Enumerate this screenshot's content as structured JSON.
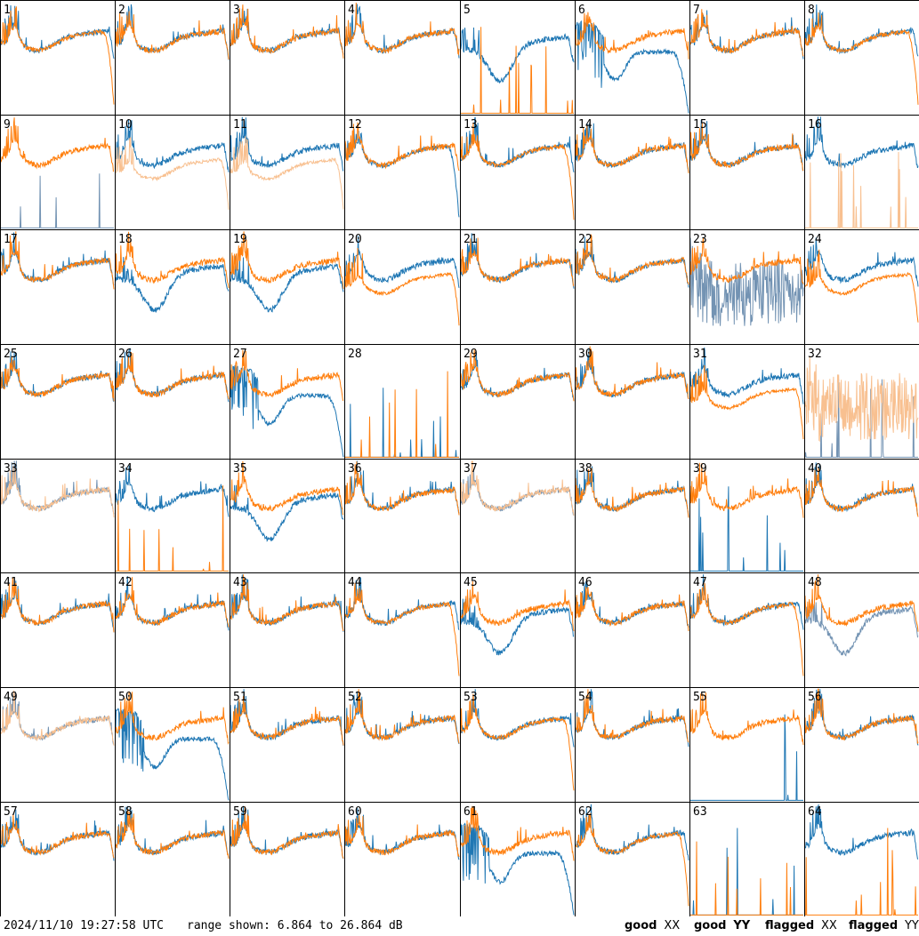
{
  "footer": {
    "timestamp": "2024/11/10 19:27:58 UTC",
    "range_text": "range shown: 6.864 to 26.864 dB"
  },
  "legend": [
    {
      "key": "good_xx",
      "label_prefix": "good",
      "label_pol": "XX",
      "color": "#1f77b4"
    },
    {
      "key": "good_yy",
      "label_prefix": "good",
      "label_pol": "YY",
      "color": "#ff7f0e"
    },
    {
      "key": "flagged_xx",
      "label_prefix": "flagged",
      "label_pol": "XX",
      "color": "#7393b3"
    },
    {
      "key": "flagged_yy",
      "label_prefix": "flagged",
      "label_pol": "YY",
      "color": "#f8c090"
    }
  ],
  "chart_data": {
    "type": "line",
    "layout": "8x8 small multiples",
    "ylim_db": [
      6.864,
      26.864
    ],
    "x_axis": "channel (unlabeled)",
    "series_colors": {
      "good_xx": "#1f77b4",
      "good_yy": "#ff7f0e",
      "flagged_xx": "#7393b3",
      "flagged_yy": "#f8c090"
    },
    "panel_labels": [
      "1",
      "2",
      "3",
      "4",
      "5",
      "6",
      "7",
      "8",
      "9",
      "10",
      "11",
      "12",
      "13",
      "14",
      "15",
      "16",
      "17",
      "18",
      "19",
      "20",
      "21",
      "22",
      "23",
      "24",
      "25",
      "26",
      "27",
      "28",
      "29",
      "30",
      "31",
      "32",
      "33",
      "34",
      "35",
      "36",
      "37",
      "38",
      "39",
      "40",
      "41",
      "42",
      "43",
      "44",
      "45",
      "46",
      "47",
      "48",
      "49",
      "50",
      "51",
      "52",
      "53",
      "54",
      "55",
      "56",
      "57",
      "58",
      "59",
      "60",
      "61",
      "62",
      "63",
      "64"
    ],
    "panels": [
      {
        "n": 1,
        "xx": {
          "s": "A",
          "f": 0
        },
        "yy": {
          "s": "R",
          "f": 0
        }
      },
      {
        "n": 2,
        "xx": {
          "s": "A",
          "f": 0
        },
        "yy": {
          "s": "A",
          "f": 0
        }
      },
      {
        "n": 3,
        "xx": {
          "s": "A",
          "f": 0
        },
        "yy": {
          "s": "A",
          "f": 0
        }
      },
      {
        "n": 4,
        "xx": {
          "s": "A",
          "f": 0
        },
        "yy": {
          "s": "A",
          "f": 0
        }
      },
      {
        "n": 5,
        "xx": {
          "s": "D",
          "f": 0
        },
        "yy": {
          "s": "F",
          "f": 0
        }
      },
      {
        "n": 6,
        "xx": {
          "s": "E",
          "f": 0
        },
        "yy": {
          "s": "A",
          "f": 0
        }
      },
      {
        "n": 7,
        "xx": {
          "s": "A",
          "f": 0
        },
        "yy": {
          "s": "A",
          "f": 0
        }
      },
      {
        "n": 8,
        "xx": {
          "s": "A",
          "f": 0
        },
        "yy": {
          "s": "R",
          "f": 0
        }
      },
      {
        "n": 9,
        "xx": {
          "s": "S",
          "f": 1
        },
        "yy": {
          "s": "A",
          "f": 0
        }
      },
      {
        "n": 10,
        "xx": {
          "s": "A",
          "f": 0
        },
        "yy": {
          "s": "L",
          "f": 1
        }
      },
      {
        "n": 11,
        "xx": {
          "s": "A",
          "f": 0
        },
        "yy": {
          "s": "L",
          "f": 1
        }
      },
      {
        "n": 12,
        "xx": {
          "s": "R",
          "f": 0
        },
        "yy": {
          "s": "A",
          "f": 0
        }
      },
      {
        "n": 13,
        "xx": {
          "s": "A",
          "f": 0
        },
        "yy": {
          "s": "R",
          "f": 0
        }
      },
      {
        "n": 14,
        "xx": {
          "s": "A",
          "f": 0
        },
        "yy": {
          "s": "A",
          "f": 0
        }
      },
      {
        "n": 15,
        "xx": {
          "s": "A",
          "f": 0
        },
        "yy": {
          "s": "A",
          "f": 0
        }
      },
      {
        "n": 16,
        "xx": {
          "s": "A",
          "f": 0
        },
        "yy": {
          "s": "F",
          "f": 1
        }
      },
      {
        "n": 17,
        "xx": {
          "s": "A",
          "f": 0
        },
        "yy": {
          "s": "A",
          "f": 0
        }
      },
      {
        "n": 18,
        "xx": {
          "s": "D",
          "f": 0
        },
        "yy": {
          "s": "A",
          "f": 0
        }
      },
      {
        "n": 19,
        "xx": {
          "s": "D",
          "f": 0
        },
        "yy": {
          "s": "A",
          "f": 0
        }
      },
      {
        "n": 20,
        "xx": {
          "s": "A",
          "f": 0
        },
        "yy": {
          "s": "L",
          "f": 0
        }
      },
      {
        "n": 21,
        "xx": {
          "s": "A",
          "f": 0
        },
        "yy": {
          "s": "A",
          "f": 0
        }
      },
      {
        "n": 22,
        "xx": {
          "s": "A",
          "f": 0
        },
        "yy": {
          "s": "A",
          "f": 0
        }
      },
      {
        "n": 23,
        "xx": {
          "s": "N",
          "f": 1
        },
        "yy": {
          "s": "A",
          "f": 0
        }
      },
      {
        "n": 24,
        "xx": {
          "s": "A",
          "f": 0
        },
        "yy": {
          "s": "L",
          "f": 0
        }
      },
      {
        "n": 25,
        "xx": {
          "s": "A",
          "f": 0
        },
        "yy": {
          "s": "A",
          "f": 0
        }
      },
      {
        "n": 26,
        "xx": {
          "s": "A",
          "f": 0
        },
        "yy": {
          "s": "A",
          "f": 0
        }
      },
      {
        "n": 27,
        "xx": {
          "s": "E",
          "f": 0
        },
        "yy": {
          "s": "A",
          "f": 0
        }
      },
      {
        "n": 28,
        "xx": {
          "s": "F",
          "f": 0
        },
        "yy": {
          "s": "F",
          "f": 0
        }
      },
      {
        "n": 29,
        "xx": {
          "s": "A",
          "f": 0
        },
        "yy": {
          "s": "A",
          "f": 0
        }
      },
      {
        "n": 30,
        "xx": {
          "s": "A",
          "f": 0
        },
        "yy": {
          "s": "A",
          "f": 0
        }
      },
      {
        "n": 31,
        "xx": {
          "s": "A",
          "f": 0
        },
        "yy": {
          "s": "L",
          "f": 0
        }
      },
      {
        "n": 32,
        "xx": {
          "s": "F",
          "f": 1
        },
        "yy": {
          "s": "N",
          "f": 1
        }
      },
      {
        "n": 33,
        "xx": {
          "s": "A",
          "f": 1
        },
        "yy": {
          "s": "A",
          "f": 1
        }
      },
      {
        "n": 34,
        "xx": {
          "s": "A",
          "f": 0
        },
        "yy": {
          "s": "F",
          "f": 0
        }
      },
      {
        "n": 35,
        "xx": {
          "s": "D",
          "f": 0
        },
        "yy": {
          "s": "A",
          "f": 0
        }
      },
      {
        "n": 36,
        "xx": {
          "s": "A",
          "f": 0
        },
        "yy": {
          "s": "A",
          "f": 0
        }
      },
      {
        "n": 37,
        "xx": {
          "s": "A",
          "f": 1
        },
        "yy": {
          "s": "A",
          "f": 1
        }
      },
      {
        "n": 38,
        "xx": {
          "s": "A",
          "f": 0
        },
        "yy": {
          "s": "A",
          "f": 0
        }
      },
      {
        "n": 39,
        "xx": {
          "s": "F",
          "f": 0
        },
        "yy": {
          "s": "A",
          "f": 0
        }
      },
      {
        "n": 40,
        "xx": {
          "s": "A",
          "f": 0
        },
        "yy": {
          "s": "A",
          "f": 0
        }
      },
      {
        "n": 41,
        "xx": {
          "s": "A",
          "f": 0
        },
        "yy": {
          "s": "A",
          "f": 0
        }
      },
      {
        "n": 42,
        "xx": {
          "s": "A",
          "f": 0
        },
        "yy": {
          "s": "A",
          "f": 0
        }
      },
      {
        "n": 43,
        "xx": {
          "s": "A",
          "f": 0
        },
        "yy": {
          "s": "A",
          "f": 0
        }
      },
      {
        "n": 44,
        "xx": {
          "s": "A",
          "f": 0
        },
        "yy": {
          "s": "R",
          "f": 0
        }
      },
      {
        "n": 45,
        "xx": {
          "s": "D",
          "f": 0
        },
        "yy": {
          "s": "A",
          "f": 0
        }
      },
      {
        "n": 46,
        "xx": {
          "s": "A",
          "f": 0
        },
        "yy": {
          "s": "A",
          "f": 0
        }
      },
      {
        "n": 47,
        "xx": {
          "s": "A",
          "f": 0
        },
        "yy": {
          "s": "R",
          "f": 0
        }
      },
      {
        "n": 48,
        "xx": {
          "s": "D",
          "f": 1
        },
        "yy": {
          "s": "A",
          "f": 0
        }
      },
      {
        "n": 49,
        "xx": {
          "s": "A",
          "f": 1
        },
        "yy": {
          "s": "A",
          "f": 1
        }
      },
      {
        "n": 50,
        "xx": {
          "s": "E",
          "f": 0
        },
        "yy": {
          "s": "A",
          "f": 0
        }
      },
      {
        "n": 51,
        "xx": {
          "s": "A",
          "f": 0
        },
        "yy": {
          "s": "A",
          "f": 0
        }
      },
      {
        "n": 52,
        "xx": {
          "s": "A",
          "f": 0
        },
        "yy": {
          "s": "A",
          "f": 0
        }
      },
      {
        "n": 53,
        "xx": {
          "s": "A",
          "f": 0
        },
        "yy": {
          "s": "R",
          "f": 0
        }
      },
      {
        "n": 54,
        "xx": {
          "s": "A",
          "f": 0
        },
        "yy": {
          "s": "A",
          "f": 0
        }
      },
      {
        "n": 55,
        "xx": {
          "s": "F",
          "f": 0
        },
        "yy": {
          "s": "A",
          "f": 0
        }
      },
      {
        "n": 56,
        "xx": {
          "s": "A",
          "f": 0
        },
        "yy": {
          "s": "A",
          "f": 0
        }
      },
      {
        "n": 57,
        "xx": {
          "s": "A",
          "f": 0
        },
        "yy": {
          "s": "A",
          "f": 0
        }
      },
      {
        "n": 58,
        "xx": {
          "s": "A",
          "f": 0
        },
        "yy": {
          "s": "A",
          "f": 0
        }
      },
      {
        "n": 59,
        "xx": {
          "s": "A",
          "f": 0
        },
        "yy": {
          "s": "A",
          "f": 0
        }
      },
      {
        "n": 60,
        "xx": {
          "s": "A",
          "f": 0
        },
        "yy": {
          "s": "A",
          "f": 0
        }
      },
      {
        "n": 61,
        "xx": {
          "s": "E",
          "f": 0
        },
        "yy": {
          "s": "A",
          "f": 0
        }
      },
      {
        "n": 62,
        "xx": {
          "s": "A",
          "f": 0
        },
        "yy": {
          "s": "R",
          "f": 0
        }
      },
      {
        "n": 63,
        "xx": {
          "s": "F",
          "f": 0
        },
        "yy": {
          "s": "F",
          "f": 0
        }
      },
      {
        "n": 64,
        "xx": {
          "s": "A",
          "f": 0
        },
        "yy": {
          "s": "F",
          "f": 0
        }
      }
    ]
  }
}
